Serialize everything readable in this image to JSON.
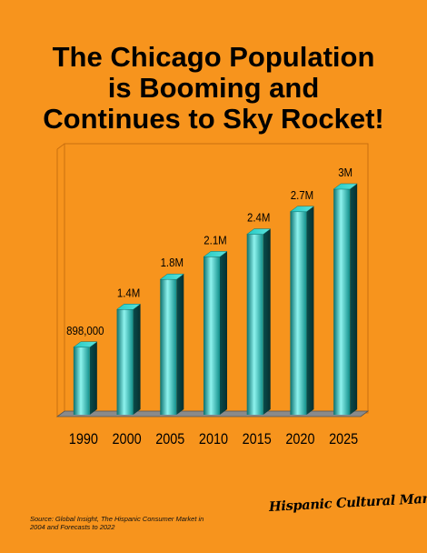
{
  "title": {
    "line1": "The Chicago Population",
    "line2": "is Booming and",
    "line3": "Continues to Sky Rocket!"
  },
  "source": "Source: Global Insight, The Hispanic Consumer Market in 2004 and Forecasts to 2022",
  "brand": "Hispanic Cultural Marketing, Inc.",
  "colors": {
    "background": "#F7941D",
    "bar": "#19B5B0",
    "bar_highlight": "#8EF3EE",
    "bar_dark": "#0A5C5C",
    "floor": "#8A8A8A"
  },
  "chart_data": {
    "type": "bar",
    "title": "The Chicago Population is Booming and Continues to Sky Rocket!",
    "categories": [
      "1990",
      "2000",
      "2005",
      "2010",
      "2015",
      "2020",
      "2025"
    ],
    "values": [
      898000,
      1400000,
      1800000,
      2100000,
      2400000,
      2700000,
      3000000
    ],
    "data_labels": [
      "898,000",
      "1.4M",
      "1.8M",
      "2.1M",
      "2.4M",
      "2.7M",
      "3M"
    ],
    "xlabel": "",
    "ylabel": "",
    "ylim": [
      0,
      3300000
    ],
    "grid": false,
    "legend": "none",
    "style": "3d"
  }
}
